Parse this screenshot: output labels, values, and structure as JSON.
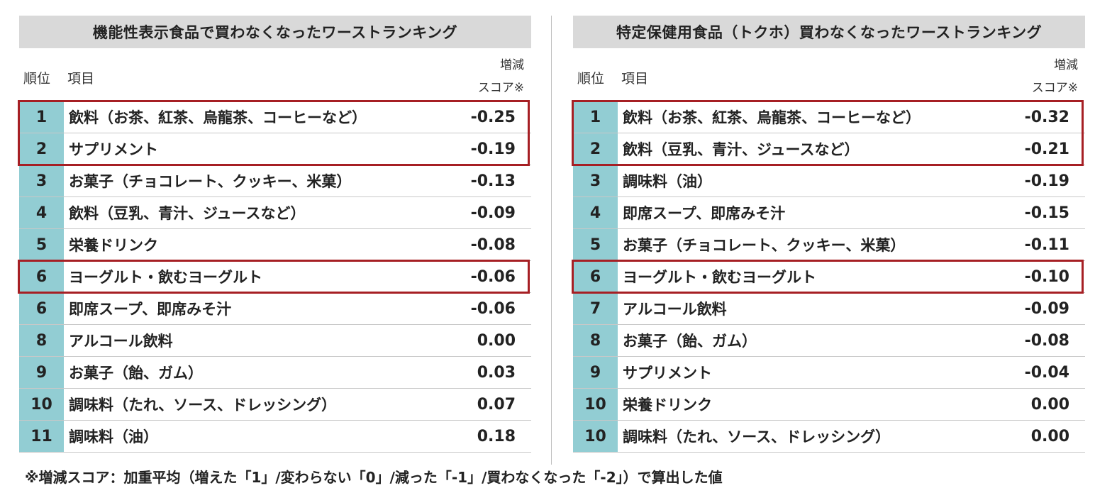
{
  "header_labels": {
    "rank": "順位",
    "item": "項目",
    "score": "増減\nスコア※"
  },
  "highlight_color": "#a61f24",
  "rank_cell_color": "#92cdd3",
  "chart_data": [
    {
      "type": "table",
      "title": "機能性表示食品で買わなくなったワーストランキング",
      "columns": [
        "順位",
        "項目",
        "増減スコア※"
      ],
      "rows": [
        {
          "rank": "1",
          "item": "飲料（お茶、紅茶、烏龍茶、コーヒーなど）",
          "score": "-0.25"
        },
        {
          "rank": "2",
          "item": "サプリメント",
          "score": "-0.19"
        },
        {
          "rank": "3",
          "item": "お菓子（チョコレート、クッキー、米菓）",
          "score": "-0.13"
        },
        {
          "rank": "4",
          "item": "飲料（豆乳、青汁、ジュースなど）",
          "score": "-0.09"
        },
        {
          "rank": "5",
          "item": "栄養ドリンク",
          "score": "-0.08"
        },
        {
          "rank": "6",
          "item": "ヨーグルト・飲むヨーグルト",
          "score": "-0.06"
        },
        {
          "rank": "6",
          "item": "即席スープ、即席みそ汁",
          "score": "-0.06"
        },
        {
          "rank": "8",
          "item": "アルコール飲料",
          "score": "0.00"
        },
        {
          "rank": "9",
          "item": "お菓子（飴、ガム）",
          "score": "0.03"
        },
        {
          "rank": "10",
          "item": "調味料（たれ、ソース、ドレッシング）",
          "score": "0.07"
        },
        {
          "rank": "11",
          "item": "調味料（油）",
          "score": "0.18"
        }
      ],
      "highlight_groups": [
        [
          0,
          1
        ],
        [
          5
        ]
      ]
    },
    {
      "type": "table",
      "title": "特定保健用食品（トクホ）買わなくなったワーストランキング",
      "columns": [
        "順位",
        "項目",
        "増減スコア※"
      ],
      "rows": [
        {
          "rank": "1",
          "item": "飲料（お茶、紅茶、烏龍茶、コーヒーなど）",
          "score": "-0.32"
        },
        {
          "rank": "2",
          "item": "飲料（豆乳、青汁、ジュースなど）",
          "score": "-0.21"
        },
        {
          "rank": "3",
          "item": "調味料（油）",
          "score": "-0.19"
        },
        {
          "rank": "4",
          "item": "即席スープ、即席みそ汁",
          "score": "-0.15"
        },
        {
          "rank": "5",
          "item": "お菓子（チョコレート、クッキー、米菓）",
          "score": "-0.11"
        },
        {
          "rank": "6",
          "item": "ヨーグルト・飲むヨーグルト",
          "score": "-0.10"
        },
        {
          "rank": "7",
          "item": "アルコール飲料",
          "score": "-0.09"
        },
        {
          "rank": "8",
          "item": "お菓子（飴、ガム）",
          "score": "-0.08"
        },
        {
          "rank": "9",
          "item": "サプリメント",
          "score": "-0.04"
        },
        {
          "rank": "10",
          "item": "栄養ドリンク",
          "score": "0.00"
        },
        {
          "rank": "10",
          "item": "調味料（たれ、ソース、ドレッシング）",
          "score": "0.00"
        }
      ],
      "highlight_groups": [
        [
          0,
          1
        ],
        [
          5
        ]
      ]
    }
  ],
  "footnote": "※増減スコア：加重平均（増えた「1」/変わらない「0」/減った「-1」/買わなくなった「-2」）で算出した値"
}
